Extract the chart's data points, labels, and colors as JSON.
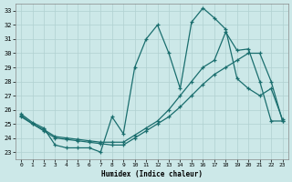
{
  "xlabel": "Humidex (Indice chaleur)",
  "xlim": [
    -0.5,
    23.5
  ],
  "ylim": [
    22.5,
    33.5
  ],
  "yticks": [
    23,
    24,
    25,
    26,
    27,
    28,
    29,
    30,
    31,
    32,
    33
  ],
  "xticks": [
    0,
    1,
    2,
    3,
    4,
    5,
    6,
    7,
    8,
    9,
    10,
    11,
    12,
    13,
    14,
    15,
    16,
    17,
    18,
    19,
    20,
    21,
    22,
    23
  ],
  "bg_color": "#cce8e8",
  "line_color": "#1a6e6e",
  "grid_color": "#b0d0d0",
  "line1_x": [
    0,
    1,
    2,
    3,
    4,
    5,
    6,
    7,
    8,
    9,
    10,
    11,
    12,
    13,
    14,
    15,
    16,
    17,
    18,
    19,
    20,
    21,
    22,
    23
  ],
  "line1_y": [
    25.7,
    25.1,
    24.7,
    23.5,
    23.3,
    23.3,
    23.3,
    23.0,
    25.5,
    24.3,
    29.0,
    31.0,
    32.0,
    30.0,
    27.5,
    32.2,
    33.2,
    32.5,
    31.7,
    28.2,
    27.5,
    27.0,
    27.5,
    25.3
  ],
  "line2_x": [
    0,
    1,
    2,
    3,
    4,
    5,
    6,
    7,
    8,
    9,
    10,
    11,
    12,
    13,
    14,
    15,
    16,
    17,
    18,
    19,
    20,
    21,
    22,
    23
  ],
  "line2_y": [
    25.5,
    25.0,
    24.5,
    24.0,
    23.9,
    23.8,
    23.7,
    23.6,
    23.5,
    23.5,
    24.0,
    24.5,
    25.0,
    25.5,
    26.2,
    27.0,
    27.8,
    28.5,
    29.0,
    29.5,
    30.0,
    30.0,
    28.0,
    25.2
  ],
  "line3_x": [
    0,
    1,
    2,
    3,
    4,
    5,
    6,
    7,
    8,
    9,
    10,
    11,
    12,
    13,
    14,
    15,
    16,
    17,
    18,
    19,
    20,
    21,
    22,
    23
  ],
  "line3_y": [
    25.6,
    25.0,
    24.6,
    24.1,
    24.0,
    23.9,
    23.8,
    23.7,
    23.7,
    23.7,
    24.2,
    24.7,
    25.2,
    26.0,
    27.0,
    28.0,
    29.0,
    29.5,
    31.5,
    30.2,
    30.3,
    28.0,
    25.2,
    25.2
  ]
}
